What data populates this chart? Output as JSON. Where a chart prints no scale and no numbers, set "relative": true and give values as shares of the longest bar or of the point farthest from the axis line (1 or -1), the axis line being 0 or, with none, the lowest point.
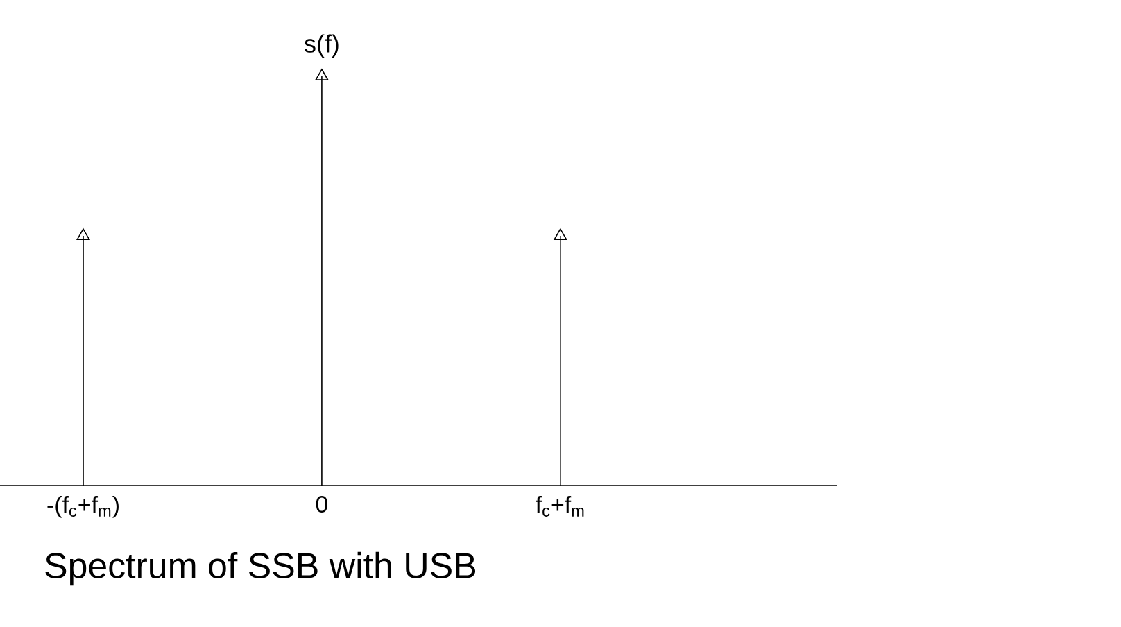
{
  "chart_data": {
    "type": "lollipop",
    "title": "Spectrum of SSB with USB",
    "ylabel": "s(f)",
    "categories": [
      "-(f$_{c}$+f$_{m}$)",
      "0",
      "f$_{c}$+f$_{m}$"
    ],
    "values": [
      0.61,
      1,
      0.61
    ],
    "color": "#000000",
    "relative": true,
    "marker": "triangle"
  }
}
